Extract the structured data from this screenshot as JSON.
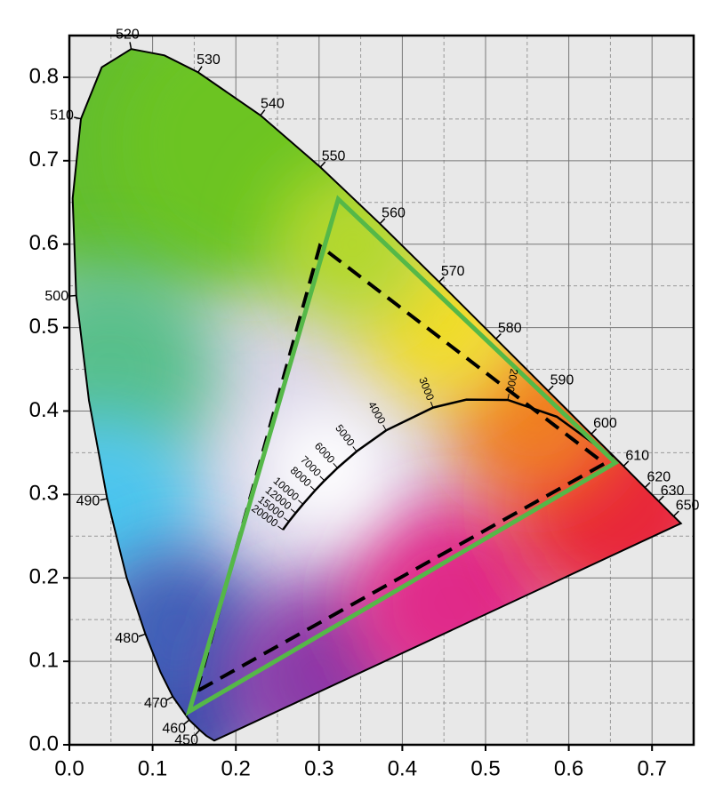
{
  "chart_data": {
    "type": "chromaticity",
    "xlim": [
      0,
      0.75
    ],
    "ylim": [
      0,
      0.85
    ],
    "xticks": [
      {
        "value": 0,
        "label": "0.0"
      },
      0.1,
      0.2,
      0.3,
      0.4,
      0.5,
      0.6,
      0.7
    ],
    "yticks": [
      {
        "value": 0,
        "label": "0.0"
      },
      0.1,
      0.2,
      0.3,
      0.4,
      0.5,
      0.6,
      0.7,
      0.8
    ],
    "grid": true,
    "minor_grid": true,
    "spectral_locus": {
      "x": [
        0.1741,
        0.1644,
        0.1566,
        0.144,
        0.1241,
        0.1096,
        0.0913,
        0.0687,
        0.0454,
        0.0235,
        0.0082,
        0.0039,
        0.0139,
        0.0389,
        0.0743,
        0.1142,
        0.1547,
        0.2296,
        0.3016,
        0.3731,
        0.4441,
        0.5125,
        0.5752,
        0.627,
        0.6658,
        0.6915,
        0.7079,
        0.726,
        0.7347
      ],
      "y": [
        0.005,
        0.0109,
        0.0177,
        0.0297,
        0.0578,
        0.0868,
        0.1327,
        0.2007,
        0.295,
        0.4127,
        0.5384,
        0.6548,
        0.7502,
        0.812,
        0.8338,
        0.8262,
        0.8059,
        0.7543,
        0.6923,
        0.6245,
        0.5547,
        0.4866,
        0.4242,
        0.3725,
        0.334,
        0.3083,
        0.292,
        0.274,
        0.2653
      ],
      "labels": [
        null,
        null,
        450,
        460,
        470,
        null,
        480,
        null,
        490,
        null,
        500,
        null,
        510,
        null,
        520,
        null,
        530,
        540,
        550,
        560,
        570,
        580,
        590,
        600,
        610,
        620,
        630,
        650,
        null
      ]
    },
    "planckian_locus": {
      "x": [
        0.6528,
        0.5857,
        0.5267,
        0.477,
        0.4369,
        0.3805,
        0.3451,
        0.3221,
        0.3064,
        0.2952,
        0.2807,
        0.2719,
        0.2637,
        0.2565
      ],
      "y": [
        0.3444,
        0.3931,
        0.4133,
        0.4137,
        0.4041,
        0.3768,
        0.3516,
        0.3318,
        0.3166,
        0.3048,
        0.2883,
        0.2778,
        0.2675,
        0.2577
      ],
      "labels": [
        null,
        null,
        2000,
        null,
        3000,
        4000,
        5000,
        6000,
        7000,
        8000,
        10000,
        12000,
        15000,
        20000
      ]
    },
    "gamuts": [
      {
        "color": "#000000",
        "dashed": true,
        "x": [
          0.153,
          0.301,
          0.643
        ],
        "y": [
          0.064,
          0.598,
          0.337
        ]
      },
      {
        "color": "#55b848",
        "dashed": false,
        "x": [
          0.144,
          0.323,
          0.656
        ],
        "y": [
          0.04,
          0.654,
          0.338
        ]
      }
    ]
  }
}
